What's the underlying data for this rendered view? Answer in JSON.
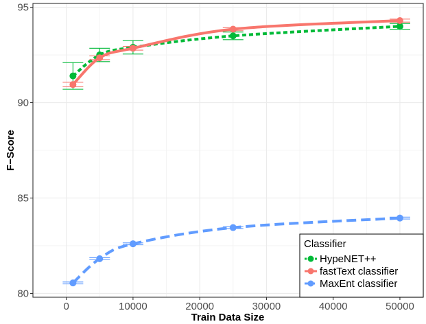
{
  "chart_data": {
    "type": "line",
    "title": "",
    "xlabel": "Train Data Size",
    "ylabel": "F−Score",
    "xlim": [
      -5000,
      53500
    ],
    "ylim": [
      79.8,
      95.2
    ],
    "x_ticks": [
      0,
      10000,
      20000,
      30000,
      40000,
      50000
    ],
    "y_ticks": [
      80,
      85,
      90,
      95
    ],
    "grid": true,
    "legend": {
      "title": "Classifier",
      "placement": "bottom-right"
    },
    "x": [
      1000,
      5000,
      10000,
      25000,
      50000
    ],
    "series": [
      {
        "name": "HypeNET++",
        "color": "#00ba38",
        "line_style": "dotted",
        "values": [
          91.4,
          92.5,
          92.9,
          93.5,
          94.0
        ],
        "error": [
          0.7,
          0.35,
          0.35,
          0.2,
          0.15
        ]
      },
      {
        "name": "fastText classifier",
        "color": "#f8766d",
        "line_style": "solid",
        "values": [
          90.95,
          92.35,
          92.85,
          93.85,
          94.3
        ],
        "error": [
          0.12,
          0.1,
          0.1,
          0.08,
          0.08
        ]
      },
      {
        "name": "MaxEnt classifier",
        "color": "#619cff",
        "line_style": "dashed",
        "values": [
          80.55,
          81.82,
          82.6,
          83.45,
          83.95
        ],
        "error": [
          0.05,
          0.05,
          0.05,
          0.05,
          0.05
        ]
      }
    ]
  }
}
